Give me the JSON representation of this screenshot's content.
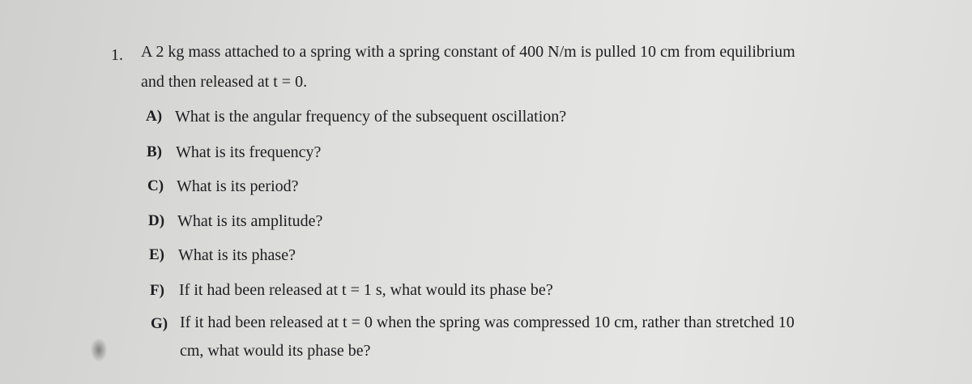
{
  "problem": {
    "number": "1.",
    "lines": [
      "A 2 kg mass attached to a spring with a spring constant of 400 N/m is pulled 10 cm from equilibrium",
      "and then released at t = 0."
    ]
  },
  "parts": [
    {
      "label": "A)",
      "lines": [
        "What is the angular frequency of the subsequent oscillation?"
      ]
    },
    {
      "label": "B)",
      "lines": [
        "What is its frequency?"
      ]
    },
    {
      "label": "C)",
      "lines": [
        "What is its period?"
      ]
    },
    {
      "label": "D)",
      "lines": [
        "What is its amplitude?"
      ]
    },
    {
      "label": "E)",
      "lines": [
        "What is its phase?"
      ]
    },
    {
      "label": "F)",
      "lines": [
        "If it had been released at t = 1 s, what would its phase be?"
      ]
    },
    {
      "label": "G)",
      "lines": [
        "If it had been released at t = 0 when the spring was compressed 10 cm, rather than stretched 10",
        "cm, what would its phase be?"
      ]
    }
  ]
}
